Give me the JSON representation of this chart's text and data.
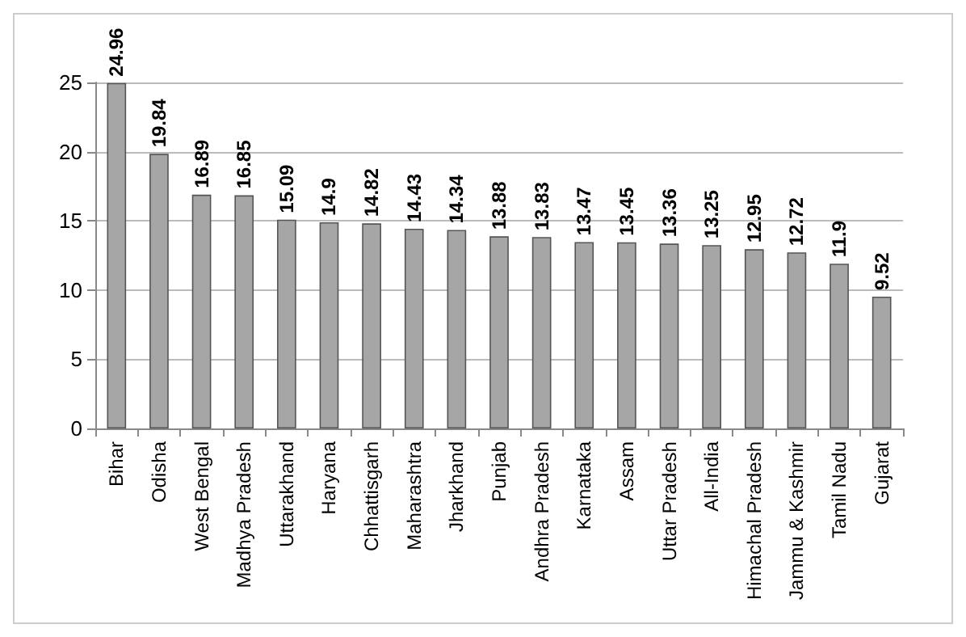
{
  "chart_data": {
    "type": "bar",
    "categories": [
      "Bihar",
      "Odisha",
      "West Bengal",
      "Madhya Pradesh",
      "Uttarakhand",
      "Haryana",
      "Chhattisgarh",
      "Maharashtra",
      "Jharkhand",
      "Punjab",
      "Andhra Pradesh",
      "Karnataka",
      "Assam",
      "Uttar Pradesh",
      "All-India",
      "Himachal Pradesh",
      "Jammu & Kashmir",
      "Tamil Nadu",
      "Gujarat"
    ],
    "values": [
      24.96,
      19.84,
      16.89,
      16.85,
      15.09,
      14.9,
      14.82,
      14.43,
      14.34,
      13.88,
      13.83,
      13.47,
      13.45,
      13.36,
      13.25,
      12.95,
      12.72,
      11.9,
      9.52
    ],
    "color": "#a6a6a6",
    "ylim": [
      0,
      25
    ],
    "yticks": [
      0,
      5,
      10,
      15,
      20,
      25
    ],
    "grid": "y",
    "data_labels": true
  }
}
